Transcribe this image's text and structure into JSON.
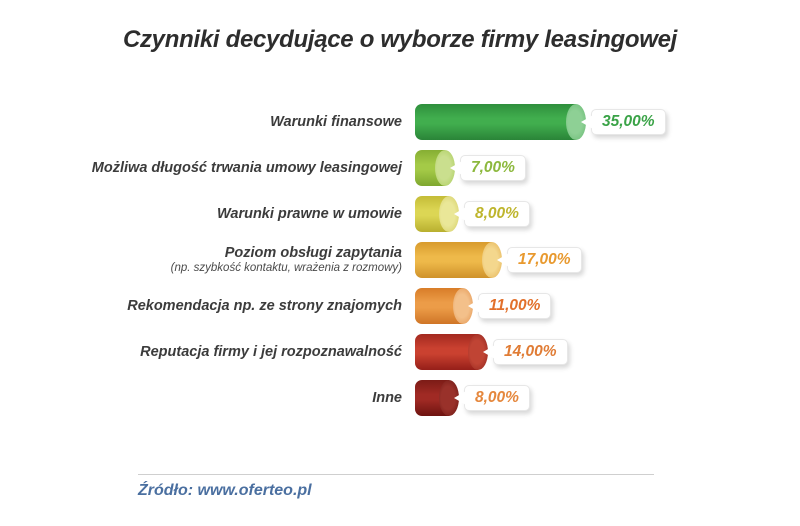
{
  "footer": {
    "source_text": "Źródło: www.oferteo.pl",
    "color": "#4a6fa0"
  },
  "chart_data": {
    "type": "bar",
    "orientation": "horizontal",
    "title": "Czynniki decydujące o wyborze firmy leasingowej",
    "xlabel": "",
    "ylabel": "",
    "unit": "%",
    "xlim": [
      0,
      40
    ],
    "grid": false,
    "legend": false,
    "categories": [
      "Warunki finansowe",
      "Możliwa długość trwania umowy leasingowej",
      "Warunki prawne w umowie",
      "Poziom obsługi zapytania",
      "Rekomendacja np. ze strony znajomych",
      "Reputacja firmy i jej rozpoznawalność",
      "Inne"
    ],
    "values": [
      35,
      7,
      8,
      17,
      11,
      14,
      8
    ],
    "bars": [
      {
        "label": "Warunki finansowe",
        "sublabel": "",
        "value": 35,
        "display": "35,00%",
        "colors": {
          "top": "#2e8f3c",
          "mid": "#41ae4e",
          "bottom": "#2a8438",
          "cap_inner": "#8ed095",
          "cap_outer": "#66b971",
          "text": "#3aa347"
        }
      },
      {
        "label": "Możliwa długość trwania umowy leasingowej",
        "sublabel": "",
        "value": 7,
        "display": "7,00%",
        "colors": {
          "top": "#86ae33",
          "mid": "#a4ca47",
          "bottom": "#7ea72f",
          "cap_inner": "#cadf8e",
          "cap_outer": "#a8cb5a",
          "text": "#8cb83d"
        }
      },
      {
        "label": "Warunki prawne w umowie",
        "sublabel": "",
        "value": 8,
        "display": "8,00%",
        "colors": {
          "top": "#c4bc37",
          "mid": "#dcd654",
          "bottom": "#b8af2f",
          "cap_inner": "#eae798",
          "cap_outer": "#d3cc60",
          "text": "#beb52c"
        }
      },
      {
        "label": "Poziom obsługi zapytania",
        "sublabel": "(np. szybkość kontaktu, wrażenia z rozmowy)",
        "value": 17,
        "display": "17,00%",
        "colors": {
          "top": "#d89b2d",
          "mid": "#eeb94a",
          "bottom": "#cf922a",
          "cap_inner": "#f4d78d",
          "cap_outer": "#e3ae4e",
          "text": "#e8992e"
        }
      },
      {
        "label": "Rekomendacja np. ze strony znajomych",
        "sublabel": "",
        "value": 11,
        "display": "11,00%",
        "colors": {
          "top": "#d87d28",
          "mid": "#ec9c48",
          "bottom": "#cf7526",
          "cap_inner": "#f3c08a",
          "cap_outer": "#e2924c",
          "text": "#e2702b"
        }
      },
      {
        "label": "Reputacja firmy i jej rozpoznawalność",
        "sublabel": "",
        "value": 14,
        "display": "14,00%",
        "colors": {
          "top": "#a3291f",
          "mid": "#ca4130",
          "bottom": "#951f19",
          "cap_inner": "#c04434",
          "cap_outer": "#8c221c",
          "text": "#e07c35"
        }
      },
      {
        "label": "Inne",
        "sublabel": "",
        "value": 8,
        "display": "8,00%",
        "colors": {
          "top": "#7c1b16",
          "mid": "#a02a24",
          "bottom": "#6d1310",
          "cap_inner": "#99312a",
          "cap_outer": "#671511",
          "text": "#e5873c"
        }
      }
    ]
  }
}
